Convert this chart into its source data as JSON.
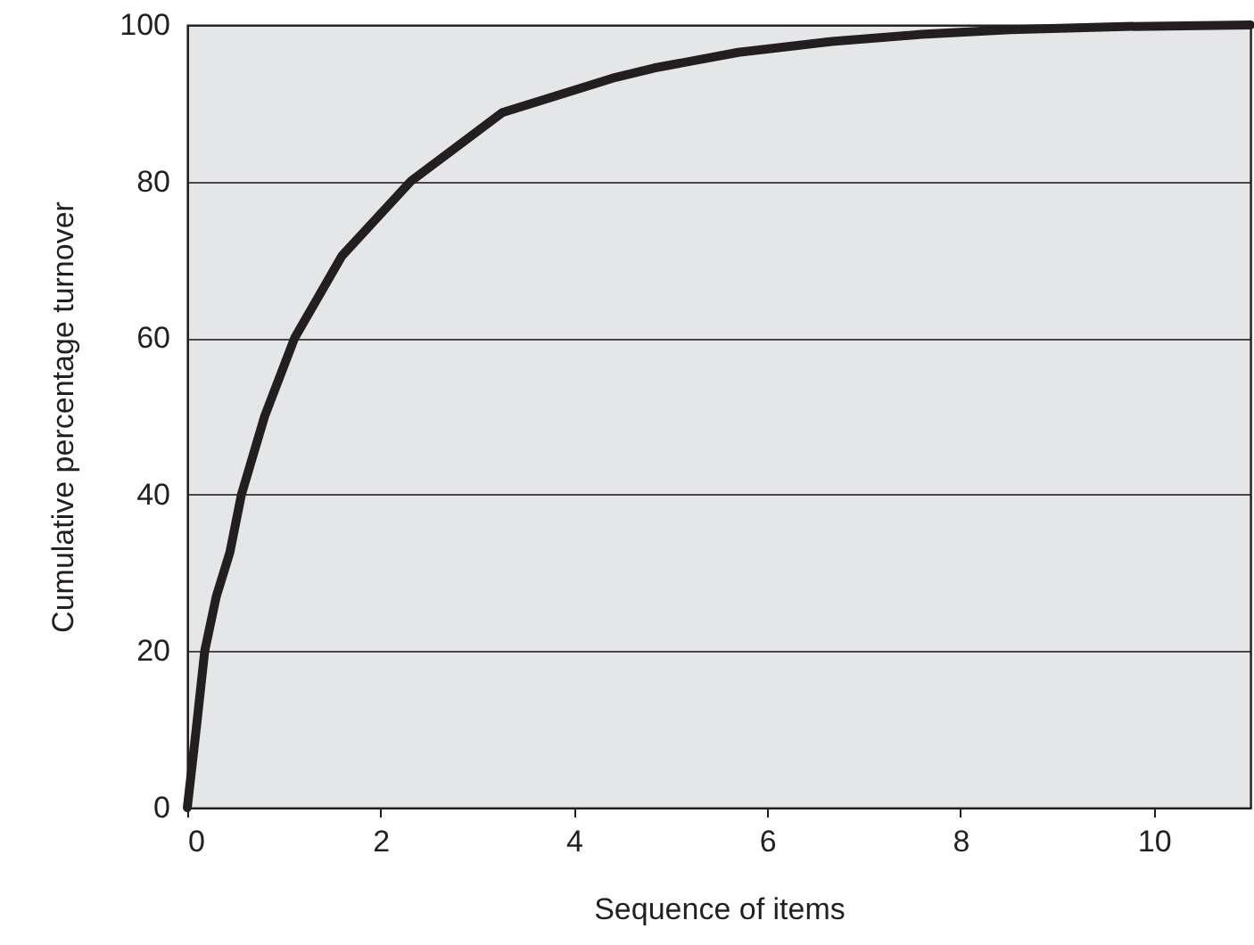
{
  "chart_data": {
    "type": "line",
    "xlabel": "Sequence of items",
    "ylabel": "Cumulative percentage turnover",
    "xlim": [
      0,
      11
    ],
    "ylim": [
      0,
      100
    ],
    "xticks": [
      0,
      2,
      4,
      6,
      8,
      10
    ],
    "yticks": [
      0,
      20,
      40,
      60,
      80,
      100
    ],
    "grid": "y",
    "series": [
      {
        "color": "#231f20",
        "x": [
          0,
          0.09,
          0.18,
          0.3,
          0.44,
          0.56,
          0.8,
          1.11,
          1.6,
          2.31,
          3.26,
          4.43,
          4.83,
          5.7,
          6.67,
          7.6,
          8.52,
          9.7,
          11
        ],
        "values": [
          0,
          9.8,
          20,
          27,
          32.6,
          40,
          50,
          60,
          70.5,
          80,
          88.8,
          93.3,
          94.5,
          96.5,
          97.9,
          98.8,
          99.4,
          99.8,
          100
        ]
      }
    ]
  }
}
